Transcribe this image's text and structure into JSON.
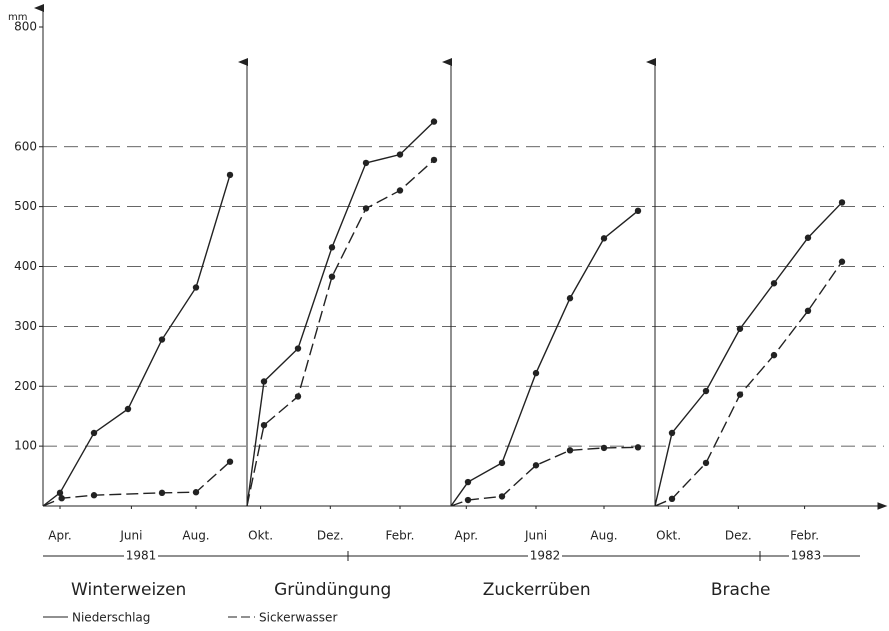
{
  "chart_data": [
    {
      "type": "line",
      "title": "Winterweizen",
      "y_label": "mm",
      "ylim": [
        0,
        800
      ],
      "yticks": [
        100,
        200,
        300,
        400,
        500,
        600,
        800
      ],
      "grid": true,
      "xlim": [
        0,
        6
      ],
      "xticks": [
        {
          "value": 0.5,
          "label": "Apr."
        },
        {
          "value": 2.6,
          "label": "Juni"
        },
        {
          "value": 4.5,
          "label": "Aug."
        }
      ],
      "series": [
        {
          "name": "Niederschlag",
          "style": "solid",
          "color": "#222",
          "x": [
            0,
            0.5,
            1.5,
            2.5,
            3.5,
            4.5,
            5.5
          ],
          "values": [
            0,
            22,
            122,
            162,
            278,
            365,
            553
          ]
        },
        {
          "name": "Sickerwasser",
          "style": "dashed",
          "color": "#222",
          "x": [
            0,
            0.55,
            1.5,
            3.5,
            4.5,
            5.5
          ],
          "values": [
            0,
            13,
            18,
            22,
            23,
            74
          ]
        }
      ]
    },
    {
      "type": "line",
      "title": "Gründüngung",
      "xlim": [
        0,
        6
      ],
      "xticks": [
        {
          "value": 0.4,
          "label": "Okt."
        },
        {
          "value": 2.45,
          "label": "Dez."
        },
        {
          "value": 4.5,
          "label": "Febr."
        }
      ],
      "series": [
        {
          "style": "solid",
          "color": "#222",
          "x": [
            0,
            0.5,
            1.5,
            2.5,
            3.5,
            4.5,
            5.5
          ],
          "values": [
            0,
            208,
            263,
            432,
            573,
            587,
            642
          ]
        },
        {
          "style": "dashed",
          "color": "#222",
          "x": [
            0,
            0.5,
            1.5,
            2.5,
            3.5,
            4.5,
            5.5
          ],
          "values": [
            0,
            135,
            183,
            383,
            497,
            527,
            578
          ]
        }
      ]
    },
    {
      "type": "line",
      "title": "Zuckerrüben",
      "xlim": [
        0,
        6
      ],
      "xticks": [
        {
          "value": 0.45,
          "label": "Apr."
        },
        {
          "value": 2.5,
          "label": "Juni"
        },
        {
          "value": 4.5,
          "label": "Aug."
        }
      ],
      "series": [
        {
          "style": "solid",
          "color": "#222",
          "x": [
            0,
            0.5,
            1.5,
            2.5,
            3.5,
            4.5,
            5.5
          ],
          "values": [
            0,
            40,
            72,
            222,
            347,
            447,
            493
          ]
        },
        {
          "style": "dashed",
          "color": "#222",
          "x": [
            0,
            0.5,
            1.5,
            2.5,
            3.5,
            4.5,
            5.5
          ],
          "values": [
            0,
            10,
            16,
            68,
            93,
            97,
            98
          ]
        }
      ]
    },
    {
      "type": "line",
      "title": "Brache",
      "xlim": [
        0,
        6
      ],
      "xticks": [
        {
          "value": 0.4,
          "label": "Okt."
        },
        {
          "value": 2.45,
          "label": "Dez."
        },
        {
          "value": 4.4,
          "label": "Febr."
        }
      ],
      "series": [
        {
          "style": "solid",
          "color": "#222",
          "x": [
            0,
            0.5,
            1.5,
            2.5,
            3.5,
            4.5,
            5.5
          ],
          "values": [
            0,
            122,
            192,
            296,
            372,
            448,
            507
          ]
        },
        {
          "style": "dashed",
          "color": "#222",
          "x": [
            0,
            0.5,
            1.5,
            2.5,
            3.5,
            4.5,
            5.5
          ],
          "values": [
            0,
            12,
            72,
            186,
            252,
            326,
            408
          ]
        }
      ]
    }
  ],
  "period_labels": [
    "1981",
    "1982",
    "1983"
  ]
}
